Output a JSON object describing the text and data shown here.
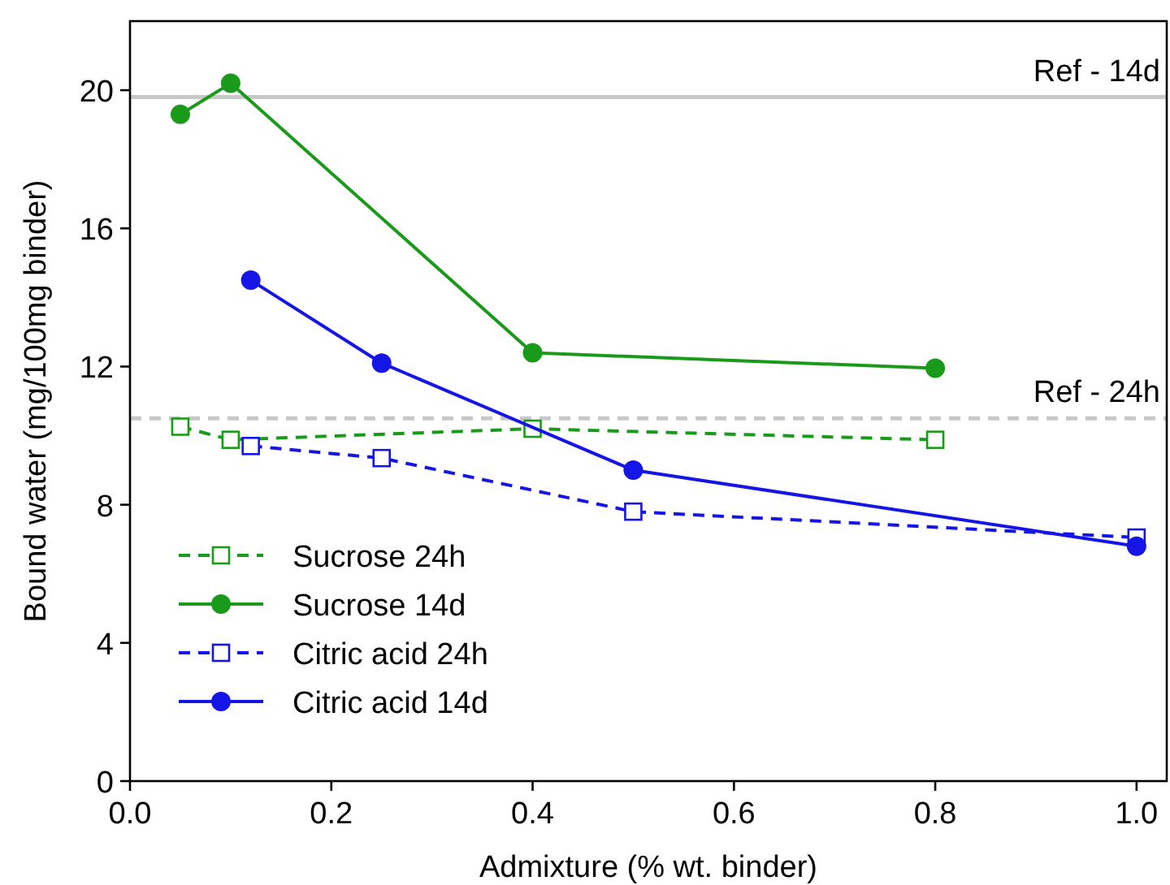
{
  "chart_data": {
    "type": "line",
    "xlabel": "Admixture (% wt. binder)",
    "ylabel": "Bound water (mg/100mg binder)",
    "xlim": [
      0,
      1.03
    ],
    "ylim": [
      0,
      22
    ],
    "xticks": [
      {
        "value": 0,
        "label": "0.0"
      },
      {
        "value": 0.2,
        "label": "0.2"
      },
      {
        "value": 0.4,
        "label": "0.4"
      },
      {
        "value": 0.6,
        "label": "0.6"
      },
      {
        "value": 0.8,
        "label": "0.8"
      },
      {
        "value": 1,
        "label": "1.0"
      }
    ],
    "yticks": [
      0,
      4,
      8,
      12,
      16,
      20
    ],
    "grid": false,
    "legend": "bottom left",
    "ref_lines": [
      {
        "axis": "y",
        "value": 19.8,
        "label": "Ref - 14d",
        "color": "#c8c8c8",
        "line_style": "solid"
      },
      {
        "axis": "y",
        "value": 10.5,
        "label": "Ref - 24h",
        "color": "#c8c8c8",
        "line_style": "dashed"
      }
    ],
    "series": [
      {
        "name": "Sucrose 24h",
        "color": "#1a9a1a",
        "x": [
          0.05,
          0.1,
          0.4,
          0.8
        ],
        "values": [
          10.26,
          9.88,
          10.2,
          9.88
        ],
        "line_style": "dashed",
        "marker": "square"
      },
      {
        "name": "Sucrose 14d",
        "color": "#1a9a1a",
        "x": [
          0.05,
          0.1,
          0.4,
          0.8
        ],
        "values": [
          19.3,
          20.2,
          12.4,
          11.95
        ],
        "line_style": "solid",
        "marker": "circle"
      },
      {
        "name": "Citric acid 24h",
        "color": "#1515e6",
        "x": [
          0.12,
          0.25,
          0.5,
          1.0
        ],
        "values": [
          9.7,
          9.35,
          7.8,
          7.05
        ],
        "line_style": "dashed",
        "marker": "square"
      },
      {
        "name": "Citric acid 14d",
        "color": "#1515e6",
        "x": [
          0.12,
          0.25,
          0.5,
          1.0
        ],
        "values": [
          14.5,
          12.1,
          9.0,
          6.8
        ],
        "line_style": "solid",
        "marker": "circle"
      }
    ]
  }
}
